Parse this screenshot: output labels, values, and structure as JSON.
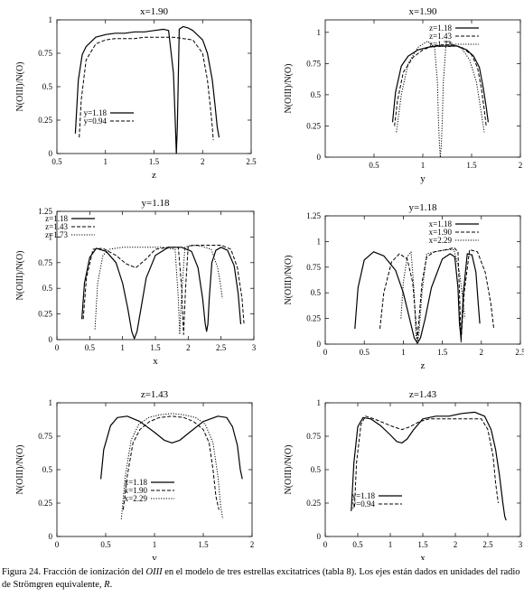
{
  "caption": {
    "prefix": "Figura 24. Fracción de ionización del ",
    "species": "OIII",
    "middle": " en el modelo de tres estrellas excitatrices (tabla 8). Los ejes están dados en unidades del radio de Strömgren equivalente, ",
    "symbol": "R",
    "suffix": "."
  },
  "chart_data": [
    {
      "type": "line",
      "title": "x=1.90",
      "xlabel": "z",
      "ylabel": "N(OIII)/N(O)",
      "xlim": [
        0.5,
        2.5
      ],
      "ylim": [
        0,
        1
      ],
      "xticks": [
        "0.5",
        "1",
        "1.5",
        "2",
        "2.5"
      ],
      "yticks": [
        "0",
        "0.25",
        "0.5",
        "0.75",
        "1"
      ],
      "legend": "bottom-left",
      "series": [
        {
          "name": "y=1.18",
          "style": "solid",
          "x": [
            0.69,
            0.72,
            0.76,
            0.8,
            0.9,
            1.0,
            1.1,
            1.2,
            1.3,
            1.4,
            1.5,
            1.6,
            1.65,
            1.7,
            1.72,
            1.73,
            1.74,
            1.76,
            1.8,
            1.85,
            1.9,
            2.0,
            2.05,
            2.1,
            2.13,
            2.15,
            2.17
          ],
          "y": [
            0.15,
            0.55,
            0.74,
            0.8,
            0.87,
            0.89,
            0.9,
            0.9,
            0.91,
            0.91,
            0.92,
            0.93,
            0.92,
            0.6,
            0.2,
            0.0,
            0.2,
            0.93,
            0.95,
            0.94,
            0.92,
            0.85,
            0.75,
            0.55,
            0.35,
            0.2,
            0.12
          ]
        },
        {
          "name": "y=0.94",
          "style": "dashed",
          "x": [
            0.73,
            0.75,
            0.8,
            0.9,
            1.0,
            1.1,
            1.2,
            1.3,
            1.4,
            1.5,
            1.6,
            1.7,
            1.8,
            1.9,
            2.0,
            2.05,
            2.08,
            2.1,
            2.11
          ],
          "y": [
            0.12,
            0.4,
            0.7,
            0.82,
            0.85,
            0.86,
            0.86,
            0.86,
            0.87,
            0.87,
            0.87,
            0.87,
            0.86,
            0.85,
            0.75,
            0.55,
            0.35,
            0.2,
            0.1
          ]
        }
      ]
    },
    {
      "type": "line",
      "title": "x=1.90",
      "xlabel": "y",
      "ylabel": "N(OIII)/N(O)",
      "xlim": [
        0,
        2
      ],
      "ylim": [
        0,
        1.1
      ],
      "xticks": [
        "0.5",
        "1",
        "1.5",
        "2"
      ],
      "yticks": [
        "0",
        "0.25",
        "0.5",
        "0.75",
        "1"
      ],
      "legend": "top-right",
      "series": [
        {
          "name": "z=1.18",
          "style": "solid",
          "x": [
            0.69,
            0.72,
            0.78,
            0.85,
            0.95,
            1.05,
            1.15,
            1.25,
            1.35,
            1.45,
            1.52,
            1.58,
            1.62,
            1.65,
            1.67
          ],
          "y": [
            0.28,
            0.52,
            0.73,
            0.81,
            0.86,
            0.88,
            0.89,
            0.89,
            0.89,
            0.86,
            0.81,
            0.72,
            0.55,
            0.4,
            0.28
          ]
        },
        {
          "name": "z=1.43",
          "style": "dashed",
          "x": [
            0.71,
            0.74,
            0.8,
            0.9,
            1.0,
            1.1,
            1.2,
            1.3,
            1.4,
            1.5,
            1.56,
            1.6,
            1.63,
            1.65
          ],
          "y": [
            0.25,
            0.45,
            0.68,
            0.8,
            0.86,
            0.89,
            0.9,
            0.9,
            0.88,
            0.82,
            0.72,
            0.55,
            0.38,
            0.25
          ]
        },
        {
          "name": "z=1.73",
          "style": "dotted",
          "x": [
            0.73,
            0.78,
            0.85,
            0.95,
            1.05,
            1.12,
            1.15,
            1.16,
            1.17,
            1.18,
            1.19,
            1.2,
            1.21,
            1.24,
            1.3,
            1.4,
            1.48,
            1.55,
            1.6,
            1.63
          ],
          "y": [
            0.2,
            0.5,
            0.75,
            0.88,
            0.93,
            0.88,
            0.6,
            0.3,
            0.1,
            0.0,
            0.1,
            0.3,
            0.6,
            0.93,
            0.91,
            0.87,
            0.78,
            0.6,
            0.35,
            0.2
          ]
        }
      ]
    },
    {
      "type": "line",
      "title": "y=1.18",
      "xlabel": "x",
      "ylabel": "N(OIII)/N(O)",
      "xlim": [
        0,
        3
      ],
      "ylim": [
        0,
        1.25
      ],
      "xticks": [
        "0",
        "0.5",
        "1",
        "1.5",
        "2",
        "2.5",
        "3"
      ],
      "yticks": [
        "0",
        "0.25",
        "0.5",
        "0.75",
        "1",
        "1.25"
      ],
      "legend": "top-left",
      "series": [
        {
          "name": "z=1.18",
          "style": "solid",
          "x": [
            0.38,
            0.42,
            0.5,
            0.6,
            0.75,
            0.9,
            1.0,
            1.08,
            1.14,
            1.18,
            1.22,
            1.28,
            1.36,
            1.5,
            1.7,
            1.9,
            2.05,
            2.15,
            2.22,
            2.26,
            2.28,
            2.3,
            2.32,
            2.36,
            2.42,
            2.5,
            2.6,
            2.7,
            2.76,
            2.8
          ],
          "y": [
            0.2,
            0.55,
            0.8,
            0.89,
            0.86,
            0.75,
            0.55,
            0.3,
            0.08,
            0.01,
            0.08,
            0.3,
            0.6,
            0.82,
            0.9,
            0.9,
            0.86,
            0.7,
            0.4,
            0.15,
            0.08,
            0.15,
            0.4,
            0.75,
            0.87,
            0.9,
            0.87,
            0.72,
            0.45,
            0.15
          ]
        },
        {
          "name": "z=1.43",
          "style": "dashed",
          "x": [
            0.4,
            0.45,
            0.55,
            0.7,
            0.9,
            1.05,
            1.2,
            1.35,
            1.5,
            1.7,
            1.85,
            1.9,
            1.93,
            1.96,
            2.0,
            2.1,
            2.3,
            2.5,
            2.65,
            2.75,
            2.82,
            2.85
          ],
          "y": [
            0.2,
            0.6,
            0.88,
            0.89,
            0.82,
            0.74,
            0.7,
            0.78,
            0.88,
            0.9,
            0.9,
            0.5,
            0.05,
            0.5,
            0.91,
            0.92,
            0.92,
            0.92,
            0.88,
            0.7,
            0.4,
            0.15
          ]
        },
        {
          "name": "z=1.73",
          "style": "dotted",
          "x": [
            0.58,
            0.62,
            0.7,
            0.8,
            1.0,
            1.2,
            1.4,
            1.6,
            1.8,
            1.85,
            1.87,
            1.9,
            1.95,
            2.05,
            2.2,
            2.35,
            2.45,
            2.5,
            2.52
          ],
          "y": [
            0.1,
            0.55,
            0.82,
            0.88,
            0.9,
            0.9,
            0.9,
            0.9,
            0.88,
            0.4,
            0.05,
            0.45,
            0.9,
            0.92,
            0.91,
            0.88,
            0.7,
            0.5,
            0.4
          ]
        }
      ]
    },
    {
      "type": "line",
      "title": "y=1.18",
      "xlabel": "z",
      "ylabel": "N(OIII)/N(O)",
      "xlim": [
        0,
        2.5
      ],
      "ylim": [
        0,
        1.25
      ],
      "xticks": [
        "0",
        "0.5",
        "1",
        "1.5",
        "2",
        "2.5"
      ],
      "yticks": [
        "0",
        "0.25",
        "0.5",
        "0.75",
        "1",
        "1.25"
      ],
      "legend": "top-right",
      "series": [
        {
          "name": "x=1.18",
          "style": "solid",
          "x": [
            0.38,
            0.42,
            0.5,
            0.62,
            0.75,
            0.9,
            1.0,
            1.08,
            1.14,
            1.18,
            1.22,
            1.28,
            1.36,
            1.5,
            1.6,
            1.66,
            1.7,
            1.72,
            1.74,
            1.77,
            1.82,
            1.88,
            1.93,
            1.96,
            1.98
          ],
          "y": [
            0.15,
            0.55,
            0.82,
            0.9,
            0.86,
            0.72,
            0.5,
            0.25,
            0.06,
            0.01,
            0.06,
            0.25,
            0.55,
            0.83,
            0.88,
            0.85,
            0.55,
            0.2,
            0.05,
            0.5,
            0.88,
            0.87,
            0.7,
            0.4,
            0.2
          ]
        },
        {
          "name": "x=1.90",
          "style": "dashed",
          "x": [
            0.7,
            0.75,
            0.85,
            0.95,
            1.05,
            1.12,
            1.18,
            1.24,
            1.3,
            1.4,
            1.55,
            1.65,
            1.7,
            1.72,
            1.74,
            1.78,
            1.85,
            1.95,
            2.05,
            2.12,
            2.16
          ],
          "y": [
            0.15,
            0.5,
            0.8,
            0.88,
            0.83,
            0.6,
            0.05,
            0.6,
            0.85,
            0.9,
            0.92,
            0.94,
            0.9,
            0.5,
            0.02,
            0.5,
            0.92,
            0.9,
            0.7,
            0.4,
            0.15
          ]
        },
        {
          "name": "x=2.29",
          "style": "dotted",
          "x": [
            0.97,
            1.0,
            1.05,
            1.1,
            1.14,
            1.16,
            1.18,
            1.2,
            1.24,
            1.3,
            1.4,
            1.55,
            1.65,
            1.72,
            1.76,
            1.79
          ],
          "y": [
            0.25,
            0.6,
            0.85,
            0.9,
            0.5,
            0.1,
            0.0,
            0.1,
            0.5,
            0.88,
            0.9,
            0.92,
            0.92,
            0.7,
            0.45,
            0.25
          ]
        }
      ]
    },
    {
      "type": "line",
      "title": "z=1.43",
      "xlabel": "y",
      "ylabel": "N(OIII)/N(O)",
      "xlim": [
        0,
        2
      ],
      "ylim": [
        0,
        1
      ],
      "xticks": [
        "0",
        "0.5",
        "1",
        "1.5",
        "2"
      ],
      "yticks": [
        "0",
        "0.25",
        "0.5",
        "0.75",
        "1"
      ],
      "legend": "bottom-right",
      "series": [
        {
          "name": "x=1.18",
          "style": "solid",
          "x": [
            0.45,
            0.48,
            0.55,
            0.62,
            0.72,
            0.85,
            1.0,
            1.1,
            1.18,
            1.26,
            1.36,
            1.5,
            1.65,
            1.74,
            1.8,
            1.85,
            1.88,
            1.9
          ],
          "y": [
            0.43,
            0.65,
            0.83,
            0.89,
            0.9,
            0.86,
            0.78,
            0.72,
            0.7,
            0.72,
            0.78,
            0.86,
            0.9,
            0.89,
            0.82,
            0.68,
            0.5,
            0.43
          ]
        },
        {
          "name": "x=1.90",
          "style": "dashed",
          "x": [
            0.68,
            0.72,
            0.78,
            0.85,
            0.95,
            1.05,
            1.18,
            1.3,
            1.4,
            1.5,
            1.56,
            1.6,
            1.63,
            1.66
          ],
          "y": [
            0.2,
            0.45,
            0.7,
            0.8,
            0.86,
            0.89,
            0.9,
            0.89,
            0.86,
            0.8,
            0.7,
            0.5,
            0.3,
            0.2
          ]
        },
        {
          "name": "x=2.29",
          "style": "dotted",
          "x": [
            0.66,
            0.7,
            0.76,
            0.84,
            0.94,
            1.05,
            1.18,
            1.3,
            1.42,
            1.52,
            1.6,
            1.65,
            1.68,
            1.7
          ],
          "y": [
            0.13,
            0.45,
            0.72,
            0.84,
            0.89,
            0.91,
            0.92,
            0.91,
            0.89,
            0.84,
            0.7,
            0.45,
            0.22,
            0.13
          ]
        }
      ]
    },
    {
      "type": "line",
      "title": "z=1.43",
      "xlabel": "x",
      "ylabel": "N(OIII)/N(O)",
      "xlim": [
        0,
        3
      ],
      "ylim": [
        0,
        1
      ],
      "xticks": [
        "0",
        "0.5",
        "1",
        "1.5",
        "2",
        "2.5",
        "3"
      ],
      "yticks": [
        "0",
        "0.25",
        "0.5",
        "0.75",
        "1"
      ],
      "legend": "bottom-left",
      "series": [
        {
          "name": "y=1.18",
          "style": "solid",
          "x": [
            0.4,
            0.44,
            0.5,
            0.58,
            0.7,
            0.85,
            1.0,
            1.1,
            1.18,
            1.26,
            1.36,
            1.5,
            1.7,
            1.9,
            2.1,
            2.3,
            2.45,
            2.55,
            2.62,
            2.68,
            2.73,
            2.76,
            2.78
          ],
          "y": [
            0.19,
            0.55,
            0.82,
            0.89,
            0.88,
            0.83,
            0.76,
            0.71,
            0.7,
            0.73,
            0.8,
            0.88,
            0.9,
            0.9,
            0.92,
            0.93,
            0.9,
            0.8,
            0.65,
            0.45,
            0.25,
            0.15,
            0.12
          ]
        },
        {
          "name": "y=0.94",
          "style": "dashed",
          "x": [
            0.45,
            0.48,
            0.55,
            0.62,
            0.75,
            0.9,
            1.05,
            1.18,
            1.3,
            1.45,
            1.6,
            1.8,
            2.0,
            2.2,
            2.4,
            2.5,
            2.58,
            2.62,
            2.66
          ],
          "y": [
            0.22,
            0.55,
            0.84,
            0.9,
            0.88,
            0.85,
            0.82,
            0.8,
            0.82,
            0.86,
            0.88,
            0.88,
            0.88,
            0.88,
            0.88,
            0.8,
            0.6,
            0.4,
            0.25
          ]
        }
      ]
    }
  ]
}
